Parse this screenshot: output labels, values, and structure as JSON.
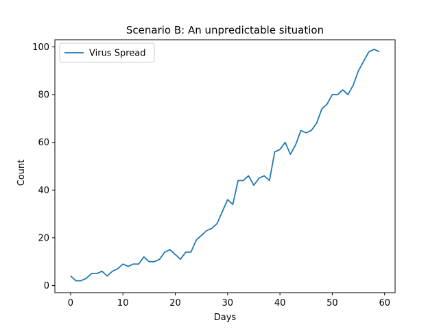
{
  "chart_data": {
    "type": "line",
    "title": "Scenario B: An unpredictable situation",
    "xlabel": "Days",
    "ylabel": "Count",
    "xlim": [
      -3,
      62
    ],
    "ylim": [
      -3,
      103
    ],
    "xticks": [
      0,
      10,
      20,
      30,
      40,
      50,
      60
    ],
    "yticks": [
      0,
      20,
      40,
      60,
      80,
      100
    ],
    "grid": false,
    "legend": {
      "position": "upper-left",
      "entries": [
        "Virus Spread"
      ]
    },
    "series": [
      {
        "name": "Virus Spread",
        "color": "#1f77b4",
        "x": [
          0,
          1,
          2,
          3,
          4,
          5,
          6,
          7,
          8,
          9,
          10,
          11,
          12,
          13,
          14,
          15,
          16,
          17,
          18,
          19,
          20,
          21,
          22,
          23,
          24,
          25,
          26,
          27,
          28,
          29,
          30,
          31,
          32,
          33,
          34,
          35,
          36,
          37,
          38,
          39,
          40,
          41,
          42,
          43,
          44,
          45,
          46,
          47,
          48,
          49,
          50,
          51,
          52,
          53,
          54,
          55,
          56,
          57,
          58,
          59
        ],
        "y": [
          4,
          2,
          2,
          3,
          5,
          5,
          6,
          4,
          6,
          7,
          9,
          8,
          9,
          9,
          12,
          10,
          10,
          11,
          14,
          15,
          13,
          11,
          14,
          14,
          19,
          21,
          23,
          24,
          26,
          31,
          36,
          34,
          44,
          44,
          46,
          42,
          45,
          46,
          44,
          56,
          57,
          60,
          55,
          59,
          65,
          64,
          65,
          68,
          74,
          76,
          80,
          80,
          82,
          80,
          84,
          90,
          94,
          98,
          99,
          98
        ]
      }
    ]
  }
}
